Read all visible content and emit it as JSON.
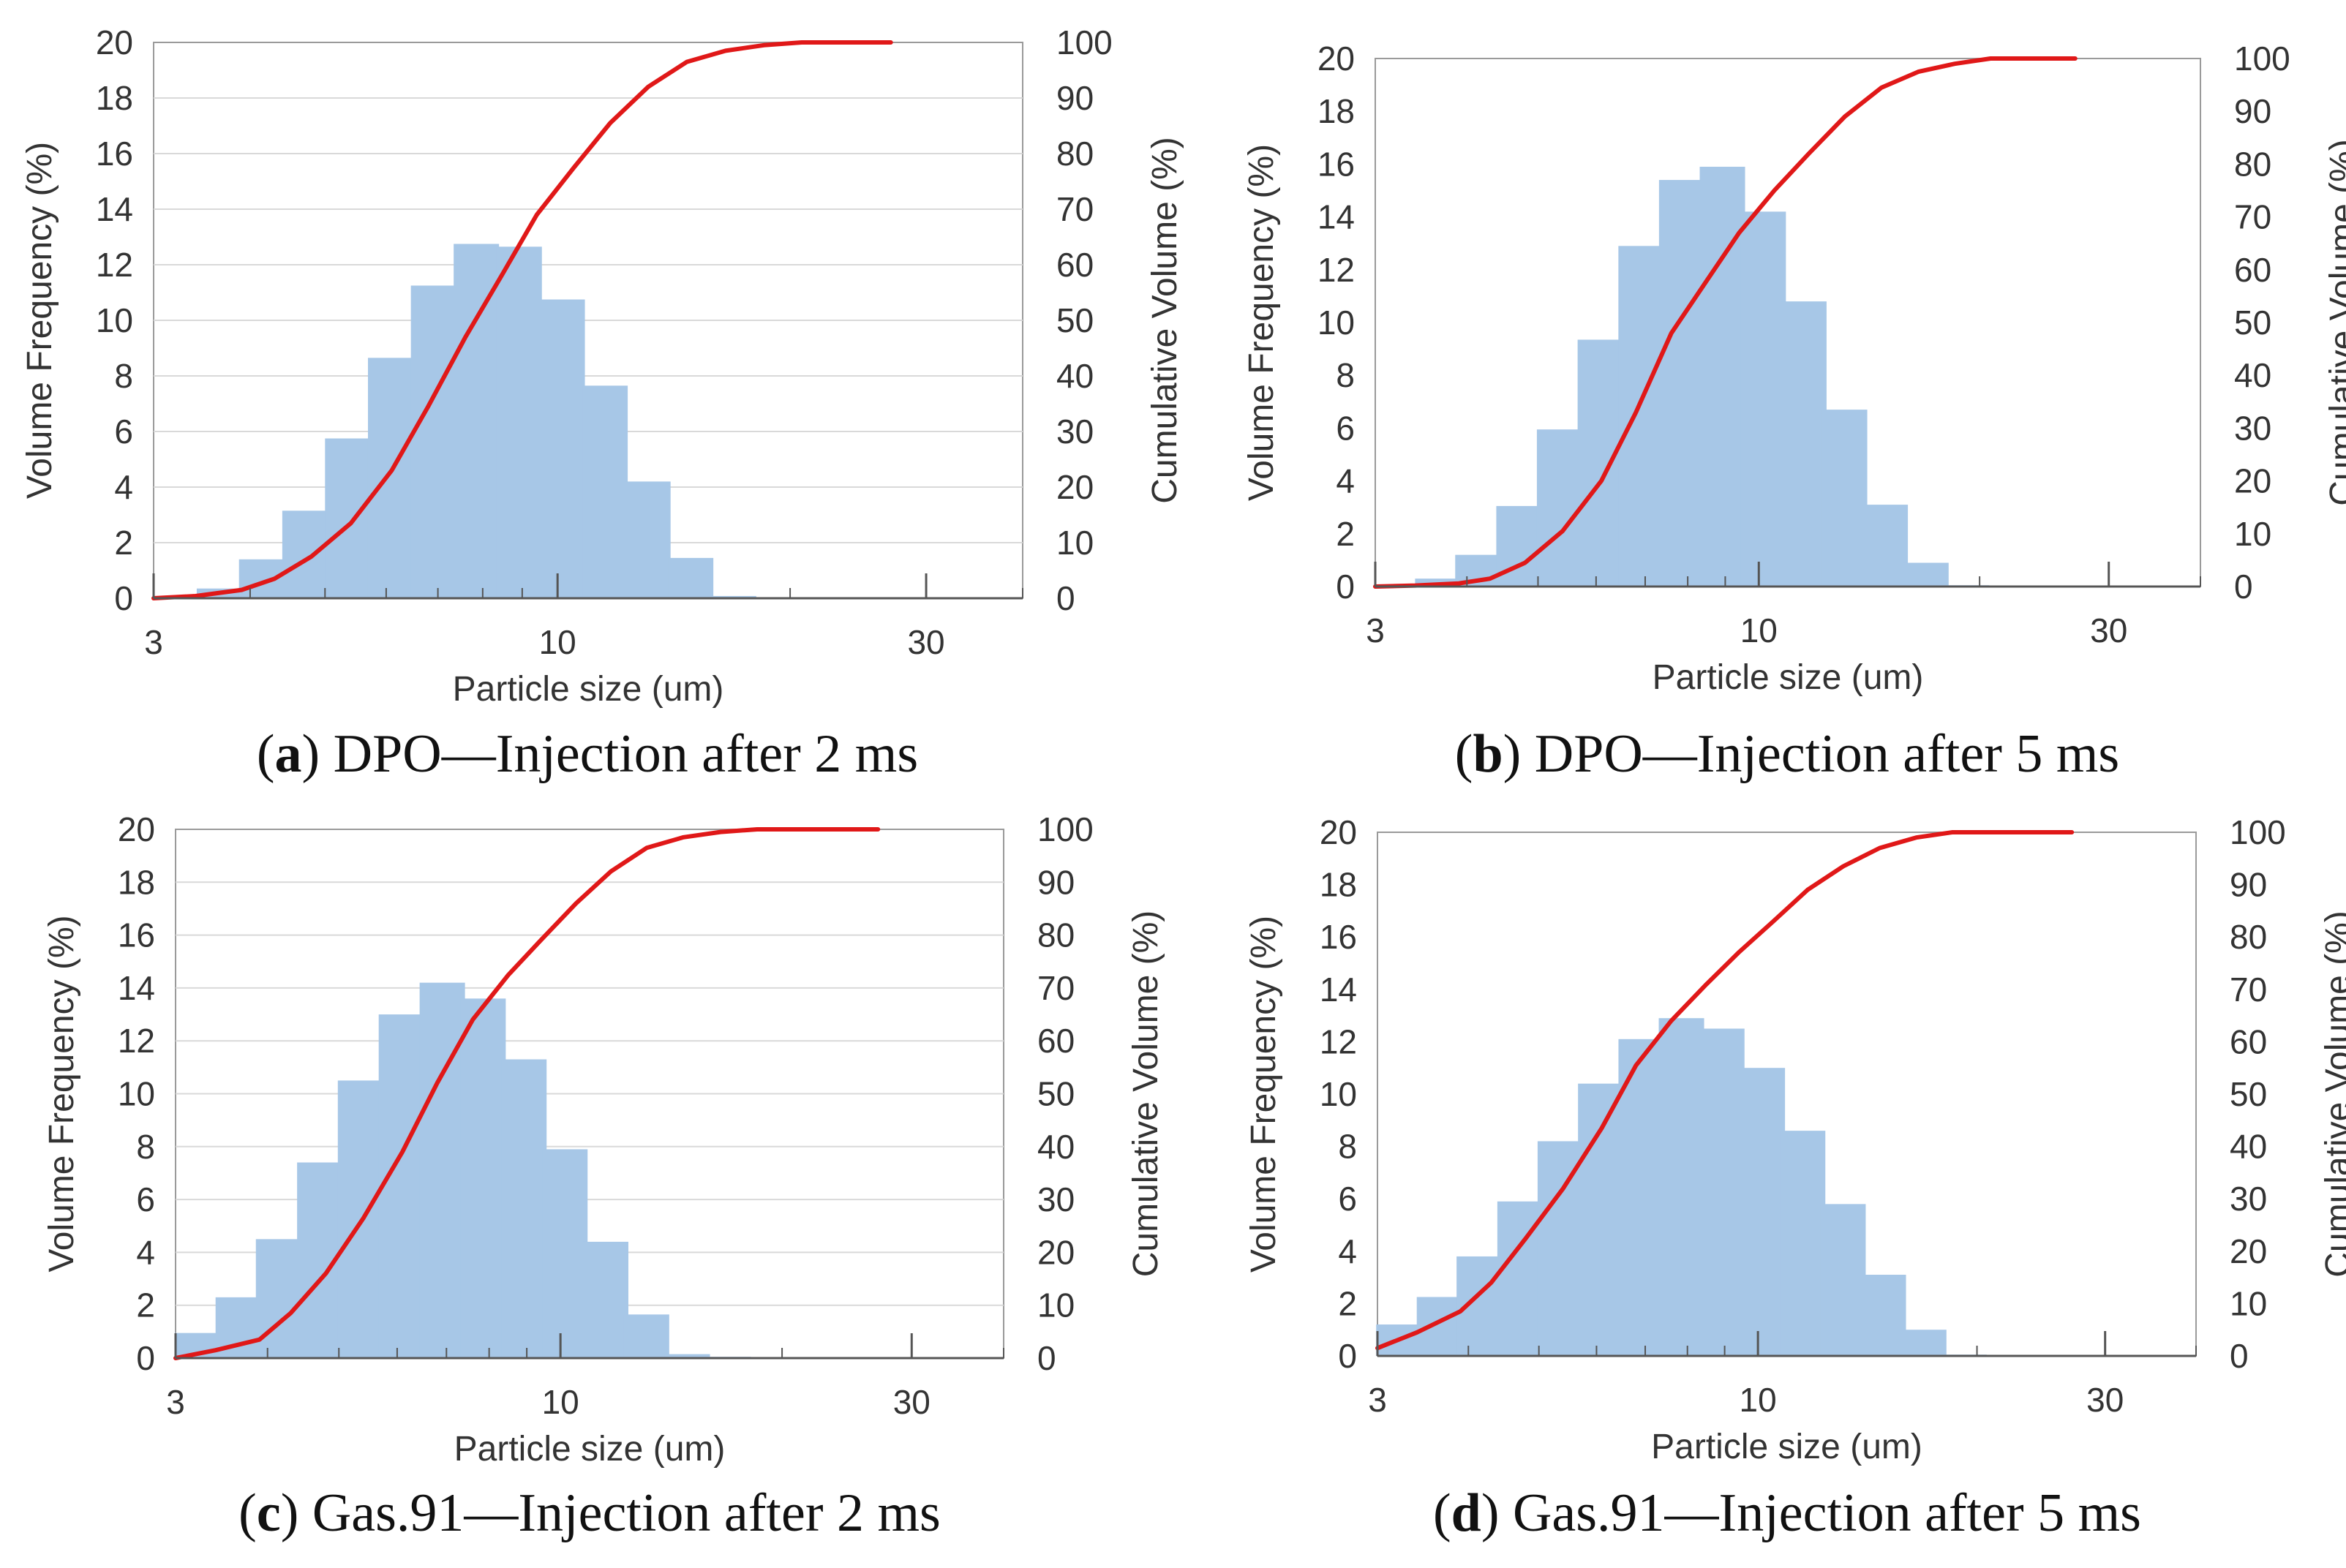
{
  "chart_data": [
    {
      "type": "bar",
      "caption": {
        "letter": "a",
        "rest": ") DPO—Injection after 2 ms",
        "open": "("
      },
      "xlabel": "Particle size (um)",
      "ylabel": "Volume Frequency  (%)",
      "y2label": "Cumulative Volume  (%)",
      "x_scale": "log",
      "xlim": [
        3,
        40
      ],
      "x_ticks": [
        3,
        10,
        30
      ],
      "ylim": [
        0,
        20
      ],
      "y_ticks": [
        0,
        2,
        4,
        6,
        8,
        10,
        12,
        14,
        16,
        18,
        20
      ],
      "y2lim": [
        0,
        100
      ],
      "y2_ticks": [
        0,
        10,
        20,
        30,
        40,
        50,
        60,
        70,
        80,
        90,
        100
      ],
      "grid": "horizontal",
      "bar_color": "#a7c7e7",
      "line_color": "#e01818",
      "bars": {
        "x": [
          3.21,
          3.65,
          4.14,
          4.71,
          5.35,
          6.08,
          6.91,
          7.85,
          8.92,
          10.14,
          11.52,
          13.09,
          14.87,
          16.9,
          19.2,
          21.8,
          24.8,
          27.6
        ],
        "values": [
          0.05,
          0.35,
          1.4,
          3.15,
          5.75,
          8.65,
          11.25,
          12.75,
          12.65,
          10.75,
          7.65,
          4.2,
          1.45,
          0.08,
          0.03,
          0.03,
          0.02,
          0.02
        ]
      },
      "cumulative": {
        "x": [
          3.0,
          3.4,
          3.9,
          4.3,
          4.8,
          5.4,
          6.1,
          6.8,
          7.6,
          8.5,
          9.4,
          10.5,
          11.7,
          13.1,
          14.7,
          16.5,
          18.5,
          20.7,
          23.0,
          27.0
        ],
        "values": [
          0,
          0.4,
          1.5,
          3.5,
          7.5,
          13.5,
          23,
          34.5,
          47,
          58.5,
          69,
          77.5,
          85.5,
          92,
          96.5,
          98.5,
          99.5,
          100,
          100,
          100
        ]
      }
    },
    {
      "type": "bar",
      "caption": {
        "letter": "b",
        "rest": ") DPO—Injection after 5 ms",
        "open": "("
      },
      "xlabel": "Particle size (um)",
      "ylabel": "Volume Frequency  (%)",
      "y2label": "Cumulative Volume  (%)",
      "x_scale": "log",
      "xlim": [
        3,
        40
      ],
      "x_ticks": [
        3,
        10,
        30
      ],
      "ylim": [
        0,
        20
      ],
      "y_ticks": [
        0,
        2,
        4,
        6,
        8,
        10,
        12,
        14,
        16,
        18,
        20
      ],
      "y2lim": [
        0,
        100
      ],
      "y2_ticks": [
        0,
        10,
        20,
        30,
        40,
        50,
        60,
        70,
        80,
        90,
        100
      ],
      "grid": "none",
      "bar_color": "#a7c7e7",
      "line_color": "#e01818",
      "bars": {
        "x": [
          3.21,
          3.65,
          4.14,
          4.71,
          5.35,
          6.08,
          6.91,
          7.85,
          8.92,
          10.14,
          11.52,
          13.09,
          14.87,
          16.9,
          19.2,
          21.8,
          24.8,
          27.6
        ],
        "values": [
          0.08,
          0.3,
          1.2,
          3.05,
          5.95,
          9.35,
          12.9,
          15.4,
          15.9,
          14.2,
          10.8,
          6.7,
          3.1,
          0.9,
          0.05,
          0.03,
          0.02,
          0.02
        ]
      },
      "cumulative": {
        "x": [
          3.0,
          3.4,
          3.9,
          4.3,
          4.8,
          5.4,
          6.1,
          6.8,
          7.6,
          8.5,
          9.4,
          10.5,
          11.7,
          13.1,
          14.7,
          16.5,
          18.5,
          20.7,
          23.0,
          27.0
        ],
        "values": [
          0,
          0.2,
          0.6,
          1.5,
          4.5,
          10.5,
          20,
          33,
          48,
          58,
          67,
          75,
          82,
          89,
          94.5,
          97.5,
          99,
          100,
          100,
          100
        ]
      }
    },
    {
      "type": "bar",
      "caption": {
        "letter": "c",
        "rest": ") Gas.91—Injection after 2 ms",
        "open": "("
      },
      "xlabel": "Particle size (um)",
      "ylabel": "Volume Frequency  (%)",
      "y2label": "Cumulative Volume  (%)",
      "x_scale": "log",
      "xlim": [
        3,
        40
      ],
      "x_ticks": [
        3,
        10,
        30
      ],
      "ylim": [
        0,
        20
      ],
      "y_ticks": [
        0,
        2,
        4,
        6,
        8,
        10,
        12,
        14,
        16,
        18,
        20
      ],
      "y2lim": [
        0,
        100
      ],
      "y2_ticks": [
        0,
        10,
        20,
        30,
        40,
        50,
        60,
        70,
        80,
        90,
        100
      ],
      "grid": "horizontal",
      "bar_color": "#a7c7e7",
      "line_color": "#e01818",
      "bars": {
        "x": [
          3.21,
          3.65,
          4.14,
          4.71,
          5.35,
          6.08,
          6.91,
          7.85,
          8.92,
          10.14,
          11.52,
          13.09,
          14.87,
          16.9,
          19.2,
          21.8,
          24.8,
          27.6
        ],
        "values": [
          0.95,
          2.3,
          4.5,
          7.4,
          10.5,
          13.0,
          14.2,
          13.6,
          11.3,
          7.9,
          4.4,
          1.65,
          0.15,
          0.05,
          0.03,
          0.02,
          0.02,
          0.02
        ]
      },
      "cumulative": {
        "x": [
          3.0,
          3.4,
          3.9,
          4.3,
          4.8,
          5.4,
          6.1,
          6.8,
          7.6,
          8.5,
          9.4,
          10.5,
          11.7,
          13.1,
          14.7,
          16.5,
          18.5,
          20.7,
          23.0,
          27.0
        ],
        "values": [
          0,
          1.5,
          3.5,
          8.5,
          16,
          26.5,
          39,
          52,
          64,
          72.5,
          79,
          86,
          92,
          96.5,
          98.5,
          99.5,
          100,
          100,
          100,
          100
        ]
      }
    },
    {
      "type": "bar",
      "caption": {
        "letter": "d",
        "rest": ") Gas.91—Injection after 5 ms",
        "open": "("
      },
      "xlabel": "Particle size (um)",
      "ylabel": "Volume Frequency  (%)",
      "y2label": "Cumulative Volume  (%)",
      "x_scale": "log",
      "xlim": [
        3,
        40
      ],
      "x_ticks": [
        3,
        10,
        30
      ],
      "ylim": [
        0,
        20
      ],
      "y_ticks": [
        0,
        2,
        4,
        6,
        8,
        10,
        12,
        14,
        16,
        18,
        20
      ],
      "y2lim": [
        0,
        100
      ],
      "y2_ticks": [
        0,
        10,
        20,
        30,
        40,
        50,
        60,
        70,
        80,
        90,
        100
      ],
      "grid": "none",
      "bar_color": "#a7c7e7",
      "line_color": "#e01818",
      "bars": {
        "x": [
          3.21,
          3.65,
          4.14,
          4.71,
          5.35,
          6.08,
          6.91,
          7.85,
          8.92,
          10.14,
          11.52,
          13.09,
          14.87,
          16.9,
          19.2,
          21.8,
          24.8,
          27.6
        ],
        "values": [
          1.2,
          2.25,
          3.8,
          5.9,
          8.2,
          10.4,
          12.1,
          12.9,
          12.5,
          11.0,
          8.6,
          5.8,
          3.1,
          1.0,
          0.05,
          0.03,
          0.02,
          0.02
        ]
      },
      "cumulative": {
        "x": [
          3.0,
          3.4,
          3.9,
          4.3,
          4.8,
          5.4,
          6.1,
          6.8,
          7.6,
          8.5,
          9.4,
          10.5,
          11.7,
          13.1,
          14.7,
          16.5,
          18.5,
          20.7,
          23.0,
          27.0
        ],
        "values": [
          1.5,
          4.5,
          8.5,
          14,
          22.5,
          32,
          43.5,
          55.5,
          64,
          71,
          77,
          83,
          89,
          93.5,
          97,
          99,
          100,
          100,
          100,
          100
        ]
      }
    }
  ]
}
